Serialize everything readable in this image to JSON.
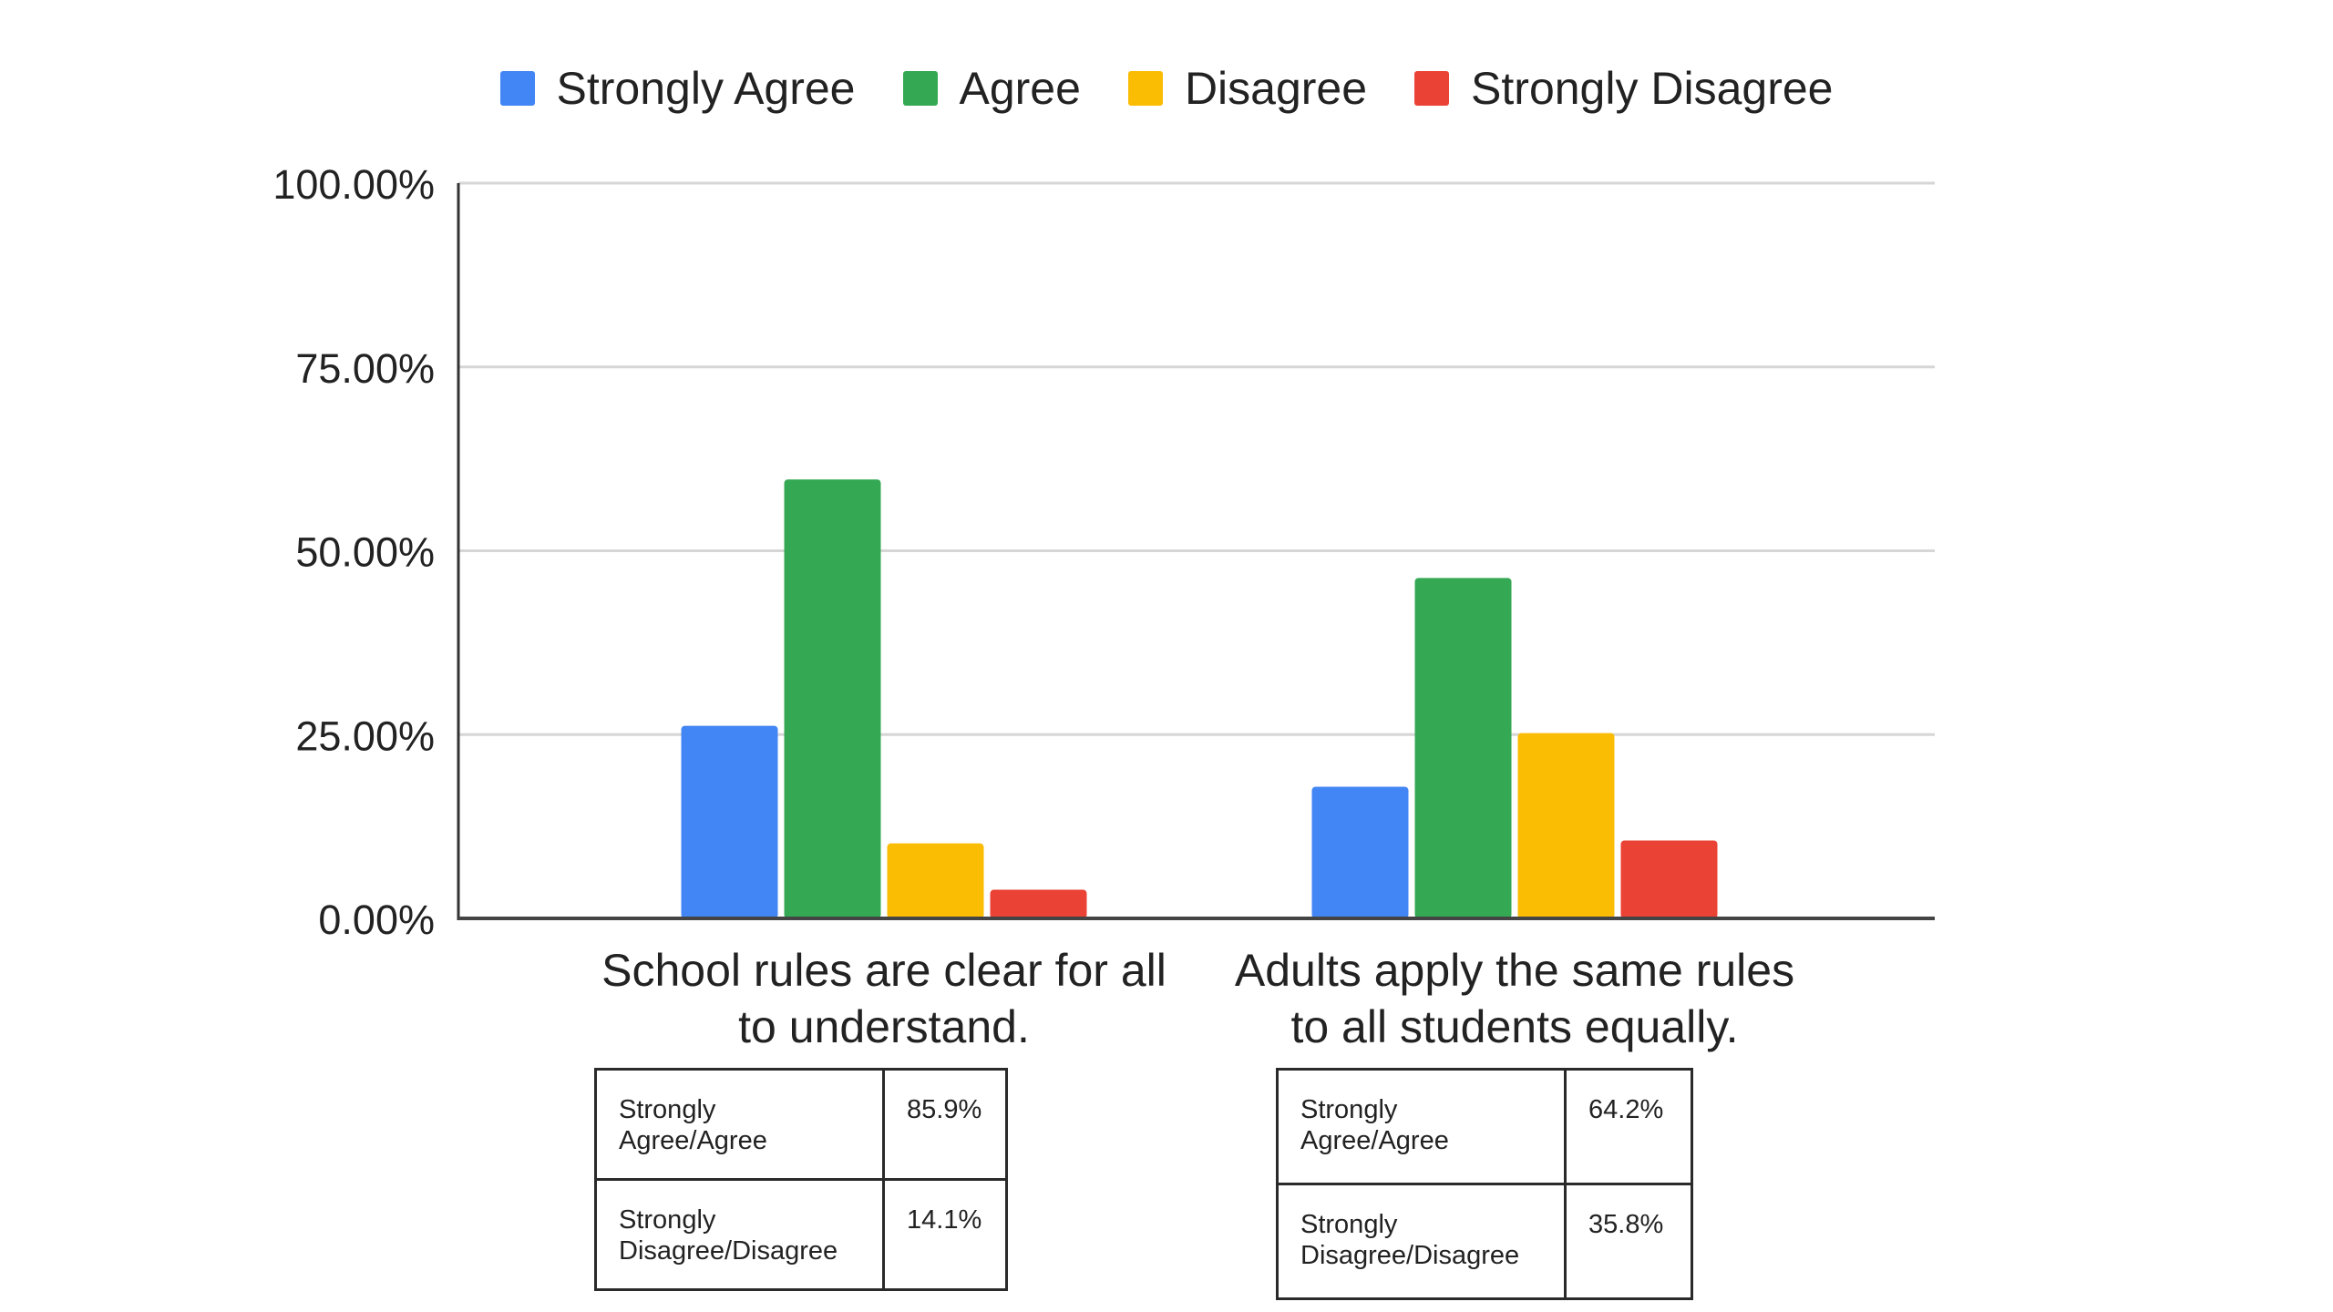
{
  "chart_data": {
    "type": "bar",
    "title": "",
    "xlabel": "",
    "ylabel": "",
    "ylim": [
      0,
      100
    ],
    "y_ticks": [
      "100.00%",
      "75.00%",
      "50.00%",
      "25.00%",
      "0.00%"
    ],
    "y_tick_values": [
      100,
      75,
      50,
      25,
      0
    ],
    "grid": true,
    "legend_position": "top-center",
    "categories": [
      [
        "School rules are clear for all",
        "to understand."
      ],
      [
        "Adults apply the same rules",
        "to all students equally."
      ]
    ],
    "series": [
      {
        "name": "Strongly Agree",
        "color": "#4285F4",
        "values": [
          26.2,
          17.9
        ]
      },
      {
        "name": "Agree",
        "color": "#34A853",
        "values": [
          59.7,
          46.3
        ]
      },
      {
        "name": "Disagree",
        "color": "#FBBC04",
        "values": [
          10.2,
          25.2
        ]
      },
      {
        "name": "Strongly Disagree",
        "color": "#EA4335",
        "values": [
          3.9,
          10.6
        ]
      }
    ]
  },
  "tables": [
    {
      "rows": [
        {
          "label": [
            "Strongly",
            "Agree/Agree"
          ],
          "value": "85.9%"
        },
        {
          "label": [
            "Strongly",
            "Disagree/Disagree"
          ],
          "value": "14.1%"
        }
      ]
    },
    {
      "rows": [
        {
          "label": [
            "Strongly",
            "Agree/Agree"
          ],
          "value": "64.2%"
        },
        {
          "label": [
            "Strongly",
            "Disagree/Disagree"
          ],
          "value": "35.8%"
        }
      ]
    }
  ]
}
